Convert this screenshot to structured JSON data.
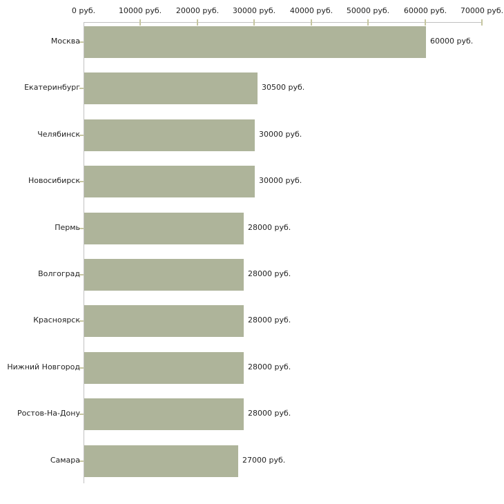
{
  "chart_data": {
    "type": "bar",
    "orientation": "horizontal",
    "title": "",
    "xlabel": "",
    "ylabel": "",
    "unit": "руб.",
    "xlim": [
      0,
      70000
    ],
    "grid": false,
    "legend": false,
    "categories": [
      "Москва",
      "Екатеринбург",
      "Челябинск",
      "Новосибирск",
      "Пермь",
      "Волгоград",
      "Красноярск",
      "Нижний Новгород",
      "Ростов-На-Дону",
      "Самара"
    ],
    "values": [
      60000,
      30500,
      30000,
      30000,
      28000,
      28000,
      28000,
      28000,
      28000,
      27000
    ],
    "value_labels": [
      "60000 руб.",
      "30500 руб.",
      "30000 руб.",
      "30000 руб.",
      "28000 руб.",
      "28000 руб.",
      "28000 руб.",
      "28000 руб.",
      "28000 руб.",
      "27000 руб."
    ],
    "x_tick_values": [
      0,
      10000,
      20000,
      30000,
      40000,
      50000,
      60000,
      70000
    ],
    "x_tick_labels": [
      "0 руб.",
      "10000 руб.",
      "20000 руб.",
      "30000 руб.",
      "40000 руб.",
      "50000 руб.",
      "60000 руб.",
      "70000 руб."
    ],
    "colors": {
      "bar": "#aeb49a",
      "axis_line": "#c0c0c0",
      "tick_mark": "#c6c6a0",
      "text": "#1f1f1f",
      "background": "#ffffff"
    }
  }
}
